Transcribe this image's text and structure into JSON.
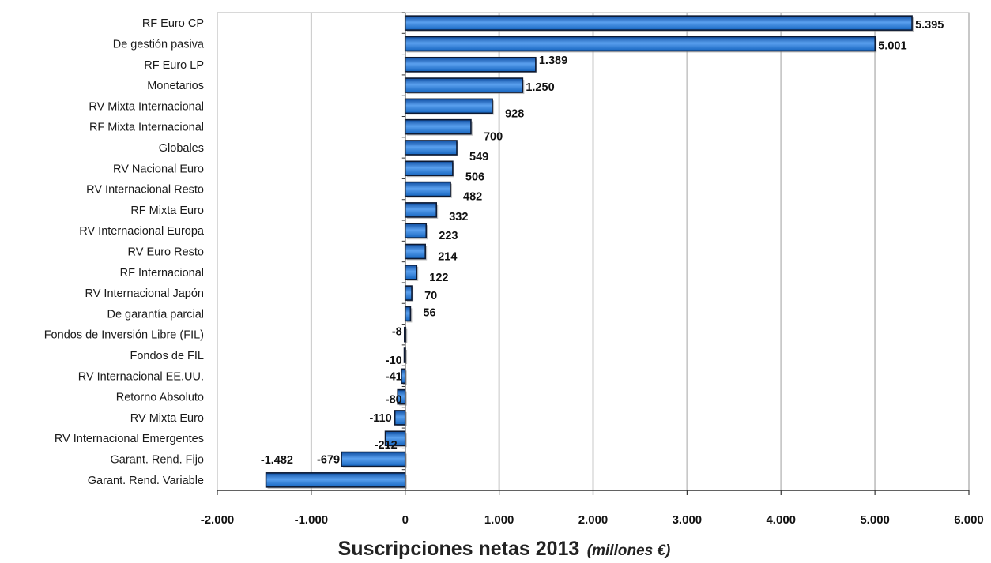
{
  "chart_data": {
    "type": "bar",
    "orientation": "horizontal",
    "categories": [
      "RF Euro CP",
      "De gestión pasiva",
      "RF Euro LP",
      "Monetarios",
      "RV Mixta Internacional",
      "RF Mixta Internacional",
      "Globales",
      "RV Nacional Euro",
      "RV Internacional Resto",
      "RF Mixta Euro",
      "RV Internacional Europa",
      "RV Euro Resto",
      "RF Internacional",
      "RV Internacional Japón",
      "De garantía parcial",
      "Fondos de Inversión Libre (FIL)",
      "Fondos de FIL",
      "RV Internacional EE.UU.",
      "Retorno Absoluto",
      "RV Mixta Euro",
      "RV Internacional Emergentes",
      "Garant. Rend. Fijo",
      "Garant. Rend. Variable"
    ],
    "values": [
      5395,
      5001,
      1389,
      1250,
      928,
      700,
      549,
      506,
      482,
      332,
      223,
      214,
      122,
      70,
      56,
      -8,
      -10,
      -41,
      -80,
      -110,
      -212,
      -679,
      -1482
    ],
    "value_labels": [
      "5.395",
      "5.001",
      "1.389",
      "1.250",
      "928",
      "700",
      "549",
      "506",
      "482",
      "332",
      "223",
      "214",
      "122",
      "70",
      "56",
      "-8",
      "-10",
      "-41",
      "-80",
      "-110",
      "-212",
      "-679",
      "-1.482"
    ],
    "xlim": [
      -2000,
      6000
    ],
    "xticks": [
      -2000,
      -1000,
      0,
      1000,
      2000,
      3000,
      4000,
      5000,
      6000
    ],
    "xtick_labels": [
      "-2.000",
      "-1.000",
      "0",
      "1.000",
      "2.000",
      "3.000",
      "4.000",
      "5.000",
      "6.000"
    ],
    "xlabel": "Suscripciones netas 2013",
    "xlabel_unit": "(millones €)",
    "grid": "vertical",
    "colors": {
      "bar": "#1565c0",
      "bar_highlight": "#5aa0ee",
      "bar_border": "#0d1a33",
      "grid": "#c8c8c8",
      "axis": "#333333"
    }
  }
}
